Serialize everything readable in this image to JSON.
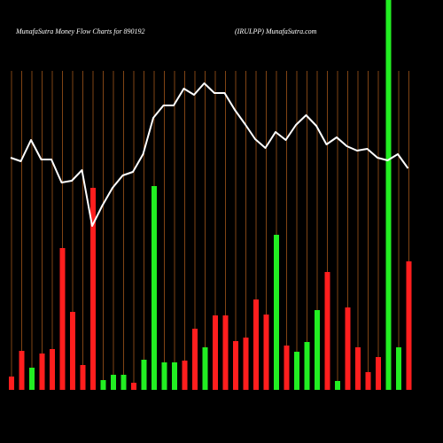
{
  "chart_data": {
    "type": "bar",
    "title": "MunafaSutra  Money Flow  Charts for 890192",
    "subtitle": "(IRULPP) MunafaSutra.com",
    "ylim": [
      0,
      440
    ],
    "bars": {
      "values": [
        15,
        44,
        25,
        41,
        46,
        160,
        88,
        28,
        228,
        11,
        17,
        17,
        8,
        34,
        230,
        31,
        31,
        33,
        69,
        48,
        84,
        84,
        55,
        59,
        102,
        85,
        175,
        50,
        43,
        54,
        90,
        133,
        10,
        93,
        48,
        20,
        37,
        440,
        48,
        145
      ],
      "colors": [
        "red",
        "red",
        "green",
        "red",
        "red",
        "red",
        "red",
        "red",
        "red",
        "green",
        "green",
        "green",
        "red",
        "green",
        "green",
        "green",
        "green",
        "red",
        "red",
        "green",
        "red",
        "red",
        "red",
        "red",
        "red",
        "red",
        "green",
        "red",
        "green",
        "green",
        "green",
        "red",
        "green",
        "red",
        "red",
        "red",
        "red",
        "green",
        "green",
        "red"
      ]
    },
    "palette": {
      "red": "#ff1e1e",
      "green": "#22ee22"
    },
    "line": {
      "color": "#ffffff",
      "values": [
        262,
        258,
        282,
        260,
        260,
        234,
        236,
        248,
        185,
        208,
        228,
        242,
        246,
        266,
        307,
        321,
        321,
        340,
        333,
        346,
        335,
        335,
        316,
        300,
        283,
        273,
        291,
        282,
        299,
        310,
        298,
        277,
        285,
        275,
        270,
        272,
        262,
        259,
        266,
        250
      ]
    },
    "grid_color": "#a0561a"
  }
}
